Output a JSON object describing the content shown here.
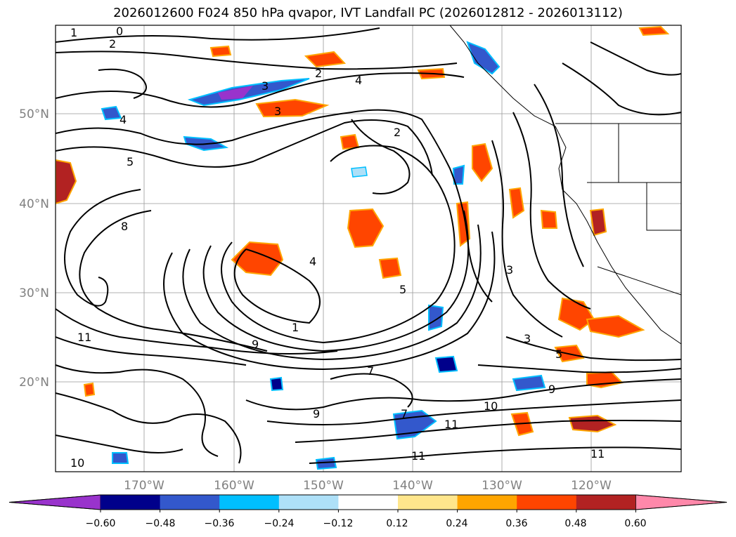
{
  "title": "2026012600 F024 850 hPa qvapor, IVT Landfall PC (2026012812 - 2026013112)",
  "map": {
    "lat_ticks": [
      "50°N",
      "40°N",
      "30°N",
      "20°N"
    ],
    "lon_ticks": [
      "170°W",
      "160°W",
      "150°W",
      "140°W",
      "130°W",
      "120°W"
    ],
    "grid": true,
    "contour_labels": [
      "0",
      "2",
      "1",
      "3",
      "4",
      "4",
      "5",
      "2",
      "3",
      "8",
      "9",
      "11",
      "7",
      "10",
      "11",
      "9",
      "7",
      "5",
      "3",
      "10",
      "11",
      "1",
      "2",
      "3",
      "4",
      "5",
      "9",
      "11"
    ]
  },
  "colorbar": {
    "ticks": [
      "−0.60",
      "−0.48",
      "−0.36",
      "−0.24",
      "−0.12",
      "0.12",
      "0.24",
      "0.36",
      "0.48",
      "0.60"
    ],
    "colors": [
      "#9933cc",
      "#00008b",
      "#3358cc",
      "#00bfff",
      "#aee0f8",
      "#ffffff",
      "#ffe68c",
      "#ffa500",
      "#ff4500",
      "#b22222",
      "#ff88aa"
    ],
    "extend": "both"
  }
}
